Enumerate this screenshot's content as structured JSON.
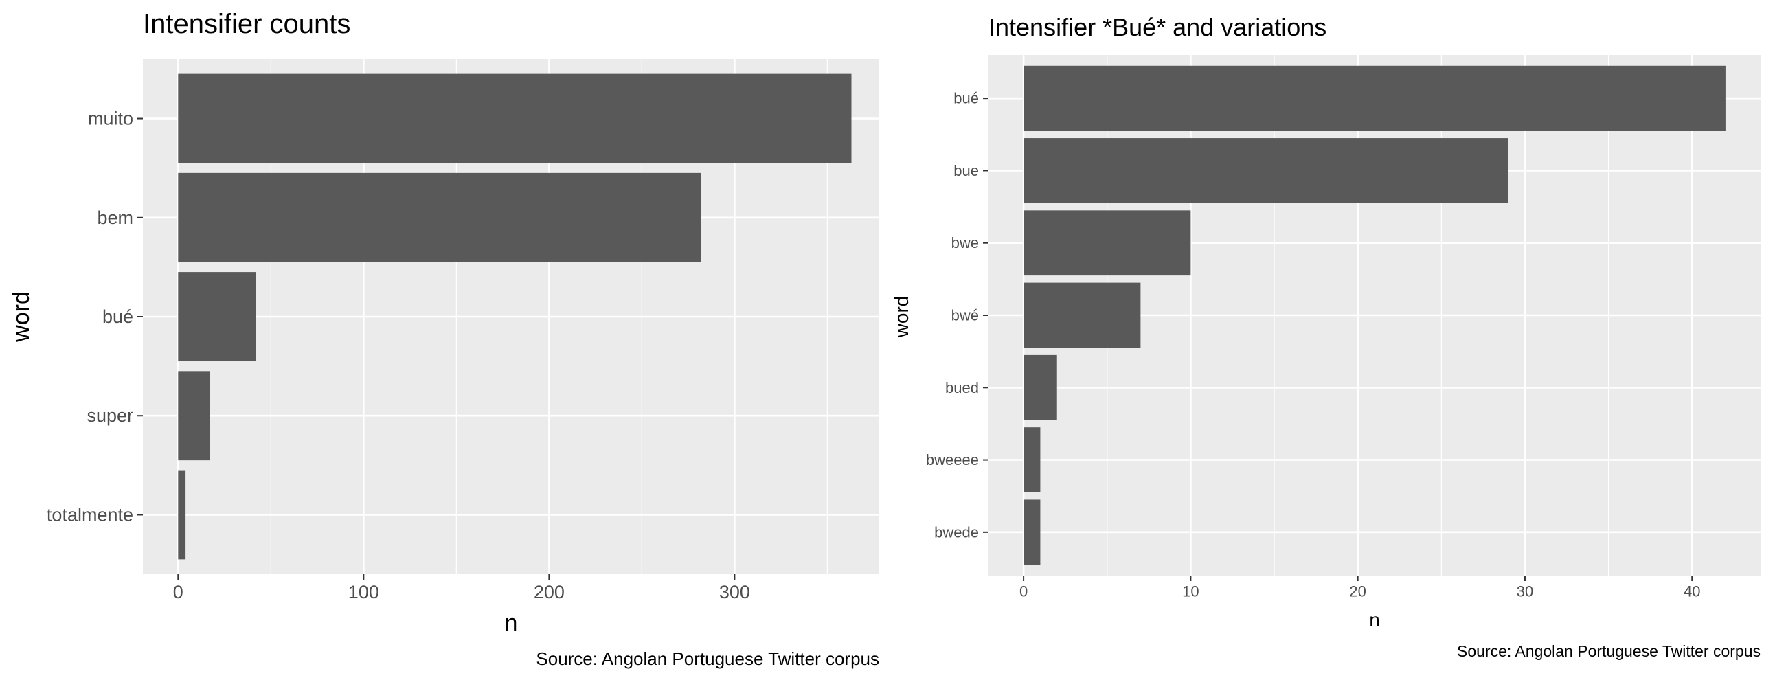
{
  "chart_data": [
    {
      "type": "bar",
      "orientation": "horizontal",
      "title": "Intensifier counts",
      "xlabel": "n",
      "ylabel": "word",
      "caption": "Source: Angolan Portuguese Twitter corpus",
      "categories": [
        "muito",
        "bem",
        "bué",
        "super",
        "totalmente"
      ],
      "values": [
        363,
        282,
        42,
        17,
        4
      ],
      "xlim": [
        -19,
        378
      ],
      "xticks": [
        0,
        100,
        200,
        300
      ],
      "bar_color": "#595959",
      "panel_color": "#ebebeb",
      "grid": true
    },
    {
      "type": "bar",
      "orientation": "horizontal",
      "title": "Intensifier *Bué* and variations",
      "xlabel": "n",
      "ylabel": "word",
      "caption": "Source: Angolan Portuguese Twitter corpus",
      "categories": [
        "bué",
        "bue",
        "bwe",
        "bwé",
        "bued",
        "bweeee",
        "bwede"
      ],
      "values": [
        42,
        29,
        10,
        7,
        2,
        1,
        1
      ],
      "xlim": [
        -2.1,
        44.1
      ],
      "xticks": [
        0,
        10,
        20,
        30,
        40
      ],
      "bar_color": "#595959",
      "panel_color": "#ebebeb",
      "grid": true
    }
  ]
}
